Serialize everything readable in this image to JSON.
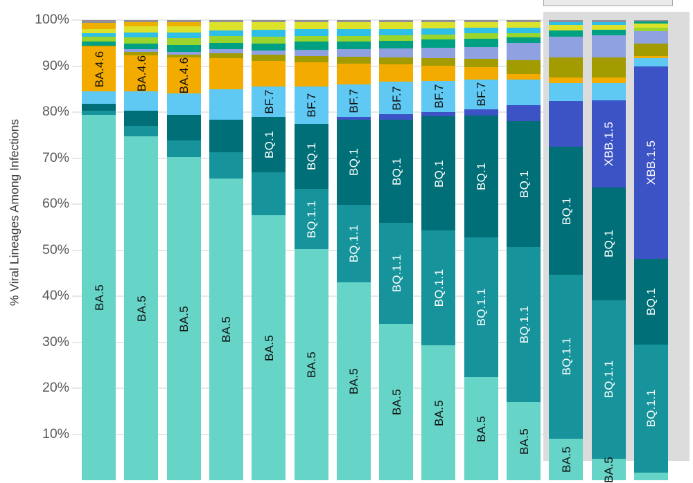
{
  "page": {
    "background": "#ffffff"
  },
  "y_axis": {
    "title": "% Viral Lineages Among Infections",
    "ticks": [
      "100%",
      "90%",
      "80%",
      "70%",
      "60%",
      "50%",
      "40%",
      "30%",
      "20%",
      "10%"
    ],
    "tick_color": "#5a5a5a",
    "title_color": "#3d3d3d"
  },
  "nowcast": {
    "panel_color": "#dcdcdc",
    "box_fill": "#eaeaea",
    "box_border": "#a3a3a3"
  },
  "colors": {
    "BA.5": "#67d4c8",
    "BQ.1.1": "#17939c",
    "BQ.1": "#006f77",
    "XBB.1.5": "#3c53c6",
    "BF.7": "#5fc8f3",
    "BA.4.6": "#f4ab00",
    "olive": "#a29c00",
    "periwinkle": "#8fa1e1",
    "teal_green": "#00a183",
    "green_lime": "#9ad52d",
    "cyan": "#2ebfe8",
    "yellow_lime": "#dce22a",
    "gold": "#edb000",
    "gray": "#928f96",
    "label_dark": "#111111",
    "label_light": "#ffffff",
    "grid": "#e7e7e7"
  },
  "chart_data": {
    "type": "bar",
    "stacked": true,
    "unit": "percent",
    "ylim": [
      0,
      100
    ],
    "ylabel": "% Viral Lineages Among Infections",
    "grid": "horizontal, every 10%",
    "legend_position": "none (segments labeled inline, rotated 90deg)",
    "x_axis_labels_visible": false,
    "bars": [
      {
        "index": 1,
        "nowcast": false,
        "segments": [
          {
            "color": "gray",
            "value": 0.6
          },
          {
            "color": "gold",
            "value": 1.3
          },
          {
            "color": "yellow_lime",
            "value": 1.0
          },
          {
            "color": "cyan",
            "value": 0.7
          },
          {
            "color": "green_lime",
            "value": 1.1
          },
          {
            "color": "teal_green",
            "value": 0.8
          },
          {
            "color": "olive",
            "value": 0.2
          },
          {
            "color": "BA.4.6",
            "value": 9.8,
            "label": "BA.4.6",
            "label_color": "dark"
          },
          {
            "color": "BF.7",
            "value": 2.7
          },
          {
            "color": "BQ.1",
            "value": 1.5
          },
          {
            "color": "BQ.1.1",
            "value": 0.9
          },
          {
            "color": "BA.5",
            "value": 79.4,
            "label": "BA.5",
            "label_color": "dark"
          }
        ]
      },
      {
        "index": 2,
        "nowcast": false,
        "segments": [
          {
            "color": "gray",
            "value": 0.5
          },
          {
            "color": "gold",
            "value": 0.9
          },
          {
            "color": "yellow_lime",
            "value": 1.3
          },
          {
            "color": "cyan",
            "value": 1.1
          },
          {
            "color": "green_lime",
            "value": 1.3
          },
          {
            "color": "teal_green",
            "value": 1.2
          },
          {
            "color": "periwinkle",
            "value": 0.6
          },
          {
            "color": "olive",
            "value": 0.8
          },
          {
            "color": "BA.4.6",
            "value": 7.8,
            "label": "BA.4.6",
            "label_color": "dark"
          },
          {
            "color": "BF.7",
            "value": 4.2
          },
          {
            "color": "BQ.1",
            "value": 3.3
          },
          {
            "color": "BQ.1.1",
            "value": 2.3
          },
          {
            "color": "BA.5",
            "value": 74.7,
            "label": "BA.5",
            "label_color": "dark"
          }
        ]
      },
      {
        "index": 3,
        "nowcast": false,
        "segments": [
          {
            "color": "gray",
            "value": 0.5
          },
          {
            "color": "gold",
            "value": 0.8
          },
          {
            "color": "yellow_lime",
            "value": 1.4
          },
          {
            "color": "cyan",
            "value": 1.2
          },
          {
            "color": "green_lime",
            "value": 1.5
          },
          {
            "color": "teal_green",
            "value": 1.5
          },
          {
            "color": "periwinkle",
            "value": 0.6
          },
          {
            "color": "olive",
            "value": 0.6
          },
          {
            "color": "BA.4.6",
            "value": 7.8,
            "label": "BA.4.6",
            "label_color": "dark"
          },
          {
            "color": "BF.7",
            "value": 4.7
          },
          {
            "color": "BQ.1",
            "value": 5.6
          },
          {
            "color": "BQ.1.1",
            "value": 3.5
          },
          {
            "color": "BA.5",
            "value": 70.3,
            "label": "BA.5",
            "label_color": "dark"
          }
        ]
      },
      {
        "index": 4,
        "nowcast": false,
        "segments": [
          {
            "color": "gray",
            "value": 0.5
          },
          {
            "color": "yellow_lime",
            "value": 1.7
          },
          {
            "color": "cyan",
            "value": 1.2
          },
          {
            "color": "green_lime",
            "value": 1.6
          },
          {
            "color": "teal_green",
            "value": 1.3
          },
          {
            "color": "periwinkle",
            "value": 0.9
          },
          {
            "color": "olive",
            "value": 1.1
          },
          {
            "color": "BA.4.6",
            "value": 6.8
          },
          {
            "color": "BF.7",
            "value": 6.5
          },
          {
            "color": "BQ.1",
            "value": 7.1
          },
          {
            "color": "BQ.1.1",
            "value": 5.7
          },
          {
            "color": "BA.5",
            "value": 65.6,
            "label": "BA.5",
            "label_color": "dark"
          }
        ]
      },
      {
        "index": 5,
        "nowcast": false,
        "segments": [
          {
            "color": "gray",
            "value": 0.5
          },
          {
            "color": "yellow_lime",
            "value": 1.6
          },
          {
            "color": "cyan",
            "value": 1.5
          },
          {
            "color": "green_lime",
            "value": 1.5
          },
          {
            "color": "teal_green",
            "value": 1.5
          },
          {
            "color": "periwinkle",
            "value": 0.9
          },
          {
            "color": "olive",
            "value": 1.4
          },
          {
            "color": "BA.4.6",
            "value": 5.6
          },
          {
            "color": "BF.7",
            "value": 6.6,
            "label": "BF.7",
            "label_color": "dark"
          },
          {
            "color": "BQ.1",
            "value": 11.9,
            "label": "BQ.1",
            "label_color": "light"
          },
          {
            "color": "BQ.1.1",
            "value": 9.3
          },
          {
            "color": "BA.5",
            "value": 57.7,
            "label": "BA.5",
            "label_color": "dark"
          }
        ]
      },
      {
        "index": 6,
        "nowcast": false,
        "segments": [
          {
            "color": "gray",
            "value": 0.5
          },
          {
            "color": "yellow_lime",
            "value": 1.5
          },
          {
            "color": "cyan",
            "value": 1.5
          },
          {
            "color": "green_lime",
            "value": 1.2
          },
          {
            "color": "teal_green",
            "value": 1.8
          },
          {
            "color": "periwinkle",
            "value": 1.3
          },
          {
            "color": "olive",
            "value": 1.4
          },
          {
            "color": "BA.4.6",
            "value": 5.3
          },
          {
            "color": "BF.7",
            "value": 8.1,
            "label": "BF.7",
            "label_color": "dark"
          },
          {
            "color": "BQ.1",
            "value": 14.1,
            "label": "BQ.1",
            "label_color": "light"
          },
          {
            "color": "BQ.1.1",
            "value": 13.1,
            "label": "BQ.1.1",
            "label_color": "light"
          },
          {
            "color": "BA.5",
            "value": 50.2,
            "label": "BA.5",
            "label_color": "dark"
          }
        ]
      },
      {
        "index": 7,
        "nowcast": false,
        "segments": [
          {
            "color": "gray",
            "value": 0.5
          },
          {
            "color": "yellow_lime",
            "value": 1.4
          },
          {
            "color": "cyan",
            "value": 1.5
          },
          {
            "color": "green_lime",
            "value": 1.2
          },
          {
            "color": "teal_green",
            "value": 1.7
          },
          {
            "color": "periwinkle",
            "value": 1.6
          },
          {
            "color": "olive",
            "value": 1.6
          },
          {
            "color": "BA.4.6",
            "value": 4.5
          },
          {
            "color": "BF.7",
            "value": 7.1,
            "label": "BF.7",
            "label_color": "dark"
          },
          {
            "color": "XBB.1.5",
            "value": 0.5
          },
          {
            "color": "BQ.1",
            "value": 18.5,
            "label": "BQ.1",
            "label_color": "light"
          },
          {
            "color": "BQ.1.1",
            "value": 16.8,
            "label": "BQ.1.1",
            "label_color": "light"
          },
          {
            "color": "BA.5",
            "value": 43.1,
            "label": "BA.5",
            "label_color": "dark"
          }
        ]
      },
      {
        "index": 8,
        "nowcast": false,
        "segments": [
          {
            "color": "gray",
            "value": 0.5
          },
          {
            "color": "yellow_lime",
            "value": 1.4
          },
          {
            "color": "cyan",
            "value": 1.4
          },
          {
            "color": "green_lime",
            "value": 1.2
          },
          {
            "color": "teal_green",
            "value": 1.7
          },
          {
            "color": "periwinkle",
            "value": 1.9
          },
          {
            "color": "olive",
            "value": 1.5
          },
          {
            "color": "BA.4.6",
            "value": 3.8
          },
          {
            "color": "BF.7",
            "value": 7.1,
            "label": "BF.7",
            "label_color": "dark"
          },
          {
            "color": "XBB.1.5",
            "value": 1.1
          },
          {
            "color": "BQ.1",
            "value": 22.5,
            "label": "BQ.1",
            "label_color": "light"
          },
          {
            "color": "BQ.1.1",
            "value": 21.8,
            "label": "BQ.1.1",
            "label_color": "light"
          },
          {
            "color": "BA.5",
            "value": 34.1,
            "label": "BA.5",
            "label_color": "dark"
          }
        ]
      },
      {
        "index": 9,
        "nowcast": false,
        "segments": [
          {
            "color": "gray",
            "value": 0.5
          },
          {
            "color": "yellow_lime",
            "value": 1.3
          },
          {
            "color": "cyan",
            "value": 1.3
          },
          {
            "color": "green_lime",
            "value": 1.1
          },
          {
            "color": "teal_green",
            "value": 1.8
          },
          {
            "color": "periwinkle",
            "value": 2.3
          },
          {
            "color": "olive",
            "value": 1.6
          },
          {
            "color": "BA.4.6",
            "value": 3.3
          },
          {
            "color": "BF.7",
            "value": 6.8,
            "label": "BF.7",
            "label_color": "dark"
          },
          {
            "color": "XBB.1.5",
            "value": 0.9
          },
          {
            "color": "BQ.1",
            "value": 24.8,
            "label": "BQ.1",
            "label_color": "light"
          },
          {
            "color": "BQ.1.1",
            "value": 24.9,
            "label": "BQ.1.1",
            "label_color": "light"
          },
          {
            "color": "BA.5",
            "value": 29.4,
            "label": "BA.5",
            "label_color": "dark"
          }
        ]
      },
      {
        "index": 10,
        "nowcast": false,
        "segments": [
          {
            "color": "gray",
            "value": 0.5
          },
          {
            "color": "yellow_lime",
            "value": 1.2
          },
          {
            "color": "cyan",
            "value": 1.2
          },
          {
            "color": "green_lime",
            "value": 1.1
          },
          {
            "color": "teal_green",
            "value": 1.8
          },
          {
            "color": "periwinkle",
            "value": 2.6
          },
          {
            "color": "olive",
            "value": 1.8
          },
          {
            "color": "BA.4.6",
            "value": 2.7
          },
          {
            "color": "BF.7",
            "value": 6.5,
            "label": "BF.7",
            "label_color": "dark"
          },
          {
            "color": "XBB.1.5",
            "value": 1.4
          },
          {
            "color": "BQ.1",
            "value": 26.4,
            "label": "BQ.1",
            "label_color": "light"
          },
          {
            "color": "BQ.1.1",
            "value": 30.4,
            "label": "BQ.1.1",
            "label_color": "light"
          },
          {
            "color": "BA.5",
            "value": 22.4,
            "label": "BA.5",
            "label_color": "dark"
          }
        ]
      },
      {
        "index": 11,
        "nowcast": false,
        "segments": [
          {
            "color": "gray",
            "value": 0.5
          },
          {
            "color": "yellow_lime",
            "value": 1.1
          },
          {
            "color": "cyan",
            "value": 1.2
          },
          {
            "color": "green_lime",
            "value": 1.0
          },
          {
            "color": "teal_green",
            "value": 1.1
          },
          {
            "color": "periwinkle",
            "value": 3.8
          },
          {
            "color": "olive",
            "value": 3.0
          },
          {
            "color": "BA.4.6",
            "value": 1.2
          },
          {
            "color": "BF.7",
            "value": 5.6
          },
          {
            "color": "XBB.1.5",
            "value": 3.5
          },
          {
            "color": "BQ.1",
            "value": 27.3,
            "label": "BQ.1",
            "label_color": "light"
          },
          {
            "color": "BQ.1.1",
            "value": 33.7,
            "label": "BQ.1.1",
            "label_color": "light"
          },
          {
            "color": "BA.5",
            "value": 17.0,
            "label": "BA.5",
            "label_color": "dark"
          }
        ]
      },
      {
        "index": 12,
        "nowcast": true,
        "segments": [
          {
            "color": "gray",
            "value": 0.4
          },
          {
            "color": "cyan",
            "value": 0.7
          },
          {
            "color": "yellow_lime",
            "value": 1.2
          },
          {
            "color": "teal_green",
            "value": 1.3
          },
          {
            "color": "periwinkle",
            "value": 4.5
          },
          {
            "color": "olive",
            "value": 4.4
          },
          {
            "color": "BA.4.6",
            "value": 1.2
          },
          {
            "color": "BF.7",
            "value": 3.9
          },
          {
            "color": "XBB.1.5",
            "value": 9.9
          },
          {
            "color": "BQ.1",
            "value": 27.8,
            "label": "BQ.1",
            "label_color": "light"
          },
          {
            "color": "BQ.1.1",
            "value": 35.6,
            "label": "BQ.1.1",
            "label_color": "light"
          },
          {
            "color": "BA.5",
            "value": 9.1,
            "label": "BA.5",
            "label_color": "dark"
          }
        ]
      },
      {
        "index": 13,
        "nowcast": true,
        "segments": [
          {
            "color": "gray",
            "value": 0.4
          },
          {
            "color": "cyan",
            "value": 0.6
          },
          {
            "color": "yellow_lime",
            "value": 1.1
          },
          {
            "color": "teal_green",
            "value": 1.2
          },
          {
            "color": "periwinkle",
            "value": 4.8
          },
          {
            "color": "olive",
            "value": 4.4
          },
          {
            "color": "BA.4.6",
            "value": 1.1
          },
          {
            "color": "BF.7",
            "value": 3.9
          },
          {
            "color": "XBB.1.5",
            "value": 18.8,
            "label": "XBB.1.5",
            "label_color": "light"
          },
          {
            "color": "BQ.1",
            "value": 24.5,
            "label": "BQ.1",
            "label_color": "light"
          },
          {
            "color": "BQ.1.1",
            "value": 34.5,
            "label": "BQ.1.1",
            "label_color": "light"
          },
          {
            "color": "BA.5",
            "value": 4.7,
            "label": "BA.5",
            "label_color": "dark"
          }
        ]
      },
      {
        "index": 14,
        "nowcast": true,
        "segments": [
          {
            "color": "gray",
            "value": 0.3
          },
          {
            "color": "teal_green",
            "value": 0.5
          },
          {
            "color": "yellow_lime",
            "value": 0.9
          },
          {
            "color": "green_lime",
            "value": 0.7
          },
          {
            "color": "periwinkle",
            "value": 2.7
          },
          {
            "color": "olive",
            "value": 2.7
          },
          {
            "color": "BA.4.6",
            "value": 0.5
          },
          {
            "color": "BF.7",
            "value": 1.7
          },
          {
            "color": "XBB.1.5",
            "value": 41.8,
            "label": "XBB.1.5",
            "label_color": "light"
          },
          {
            "color": "BQ.1",
            "value": 18.6,
            "label": "BQ.1",
            "label_color": "light"
          },
          {
            "color": "BQ.1.1",
            "value": 27.9,
            "label": "BQ.1.1",
            "label_color": "light"
          },
          {
            "color": "BA.5",
            "value": 1.7
          }
        ]
      }
    ]
  }
}
